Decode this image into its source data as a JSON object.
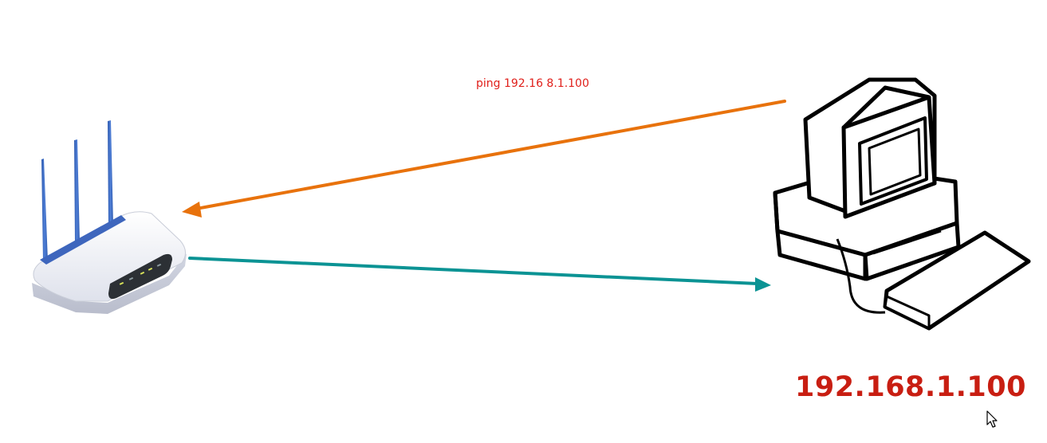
{
  "diagram": {
    "ping_command": "ping 192.16 8.1.100",
    "computer_ip": "192.168.1.100"
  },
  "colors": {
    "ping_text": "#e0201b",
    "ip_text": "#c81e12",
    "request_arrow": "#e8720c",
    "reply_arrow": "#0b9394",
    "antenna": "#3f6ec4",
    "router_body": "#eef0f6",
    "router_panel": "#2c3035",
    "led": "#d9e35a"
  },
  "icons": {
    "router": "wifi-router-icon",
    "computer": "desktop-computer-icon",
    "cursor": "mouse-cursor-icon"
  }
}
